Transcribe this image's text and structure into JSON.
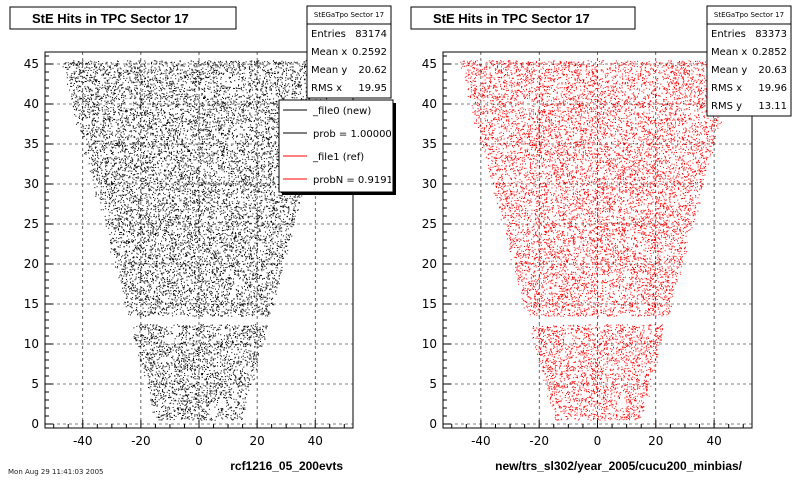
{
  "footer": "Mon Aug 29 11:41:03 2005",
  "chart_data": [
    {
      "type": "scatter",
      "title": "StE Hits in TPC Sector 17",
      "xlabel": "rcf1216_05_200evts",
      "ylabel": "",
      "xlim": [
        -53,
        53
      ],
      "ylim": [
        -0.5,
        46.5
      ],
      "xticks": [
        -40,
        -20,
        0,
        20,
        40
      ],
      "yticks": [
        0,
        5,
        10,
        15,
        20,
        25,
        30,
        35,
        40,
        45
      ],
      "grid": true,
      "marker_color": "#000000",
      "region": {
        "rows_from": 1,
        "rows_to": 45,
        "gap_row": 13,
        "halfwidth_at_row1": 15,
        "halfwidth_at_row45": 47
      },
      "stats": {
        "name": "StEGaTpo Sector 17",
        "rows": [
          [
            "Entries",
            "83174"
          ],
          [
            "Mean x",
            "0.2592"
          ],
          [
            "Mean y",
            "20.62"
          ],
          [
            "RMS x",
            "19.95"
          ]
        ]
      },
      "legend": {
        "entries": [
          {
            "label": "_file0 (new)",
            "color": "#000000"
          },
          {
            "label": "prob = 1.000000",
            "color": "#000000"
          },
          {
            "label": "_file1 (ref)",
            "color": "#ff0000"
          },
          {
            "label": "probN = 0.919130",
            "color": "#ff0000"
          }
        ]
      }
    },
    {
      "type": "scatter",
      "title": "StE Hits in TPC Sector 17",
      "xlabel": "new/trs_sl302/year_2005/cucu200_minbias/",
      "ylabel": "",
      "xlim": [
        -53,
        53
      ],
      "ylim": [
        -0.5,
        46.5
      ],
      "xticks": [
        -40,
        -20,
        0,
        20,
        40
      ],
      "yticks": [
        0,
        5,
        10,
        15,
        20,
        25,
        30,
        35,
        40,
        45
      ],
      "grid": true,
      "marker_color": "#ff0000",
      "region": {
        "rows_from": 1,
        "rows_to": 45,
        "gap_row": 13,
        "halfwidth_at_row1": 15,
        "halfwidth_at_row45": 47
      },
      "stats": {
        "name": "StEGaTpo Sector 17",
        "rows": [
          [
            "Entries",
            "83373"
          ],
          [
            "Mean x",
            "0.2852"
          ],
          [
            "Mean y",
            "20.63"
          ],
          [
            "RMS x",
            "19.96"
          ],
          [
            "RMS y",
            "13.11"
          ]
        ]
      }
    }
  ]
}
